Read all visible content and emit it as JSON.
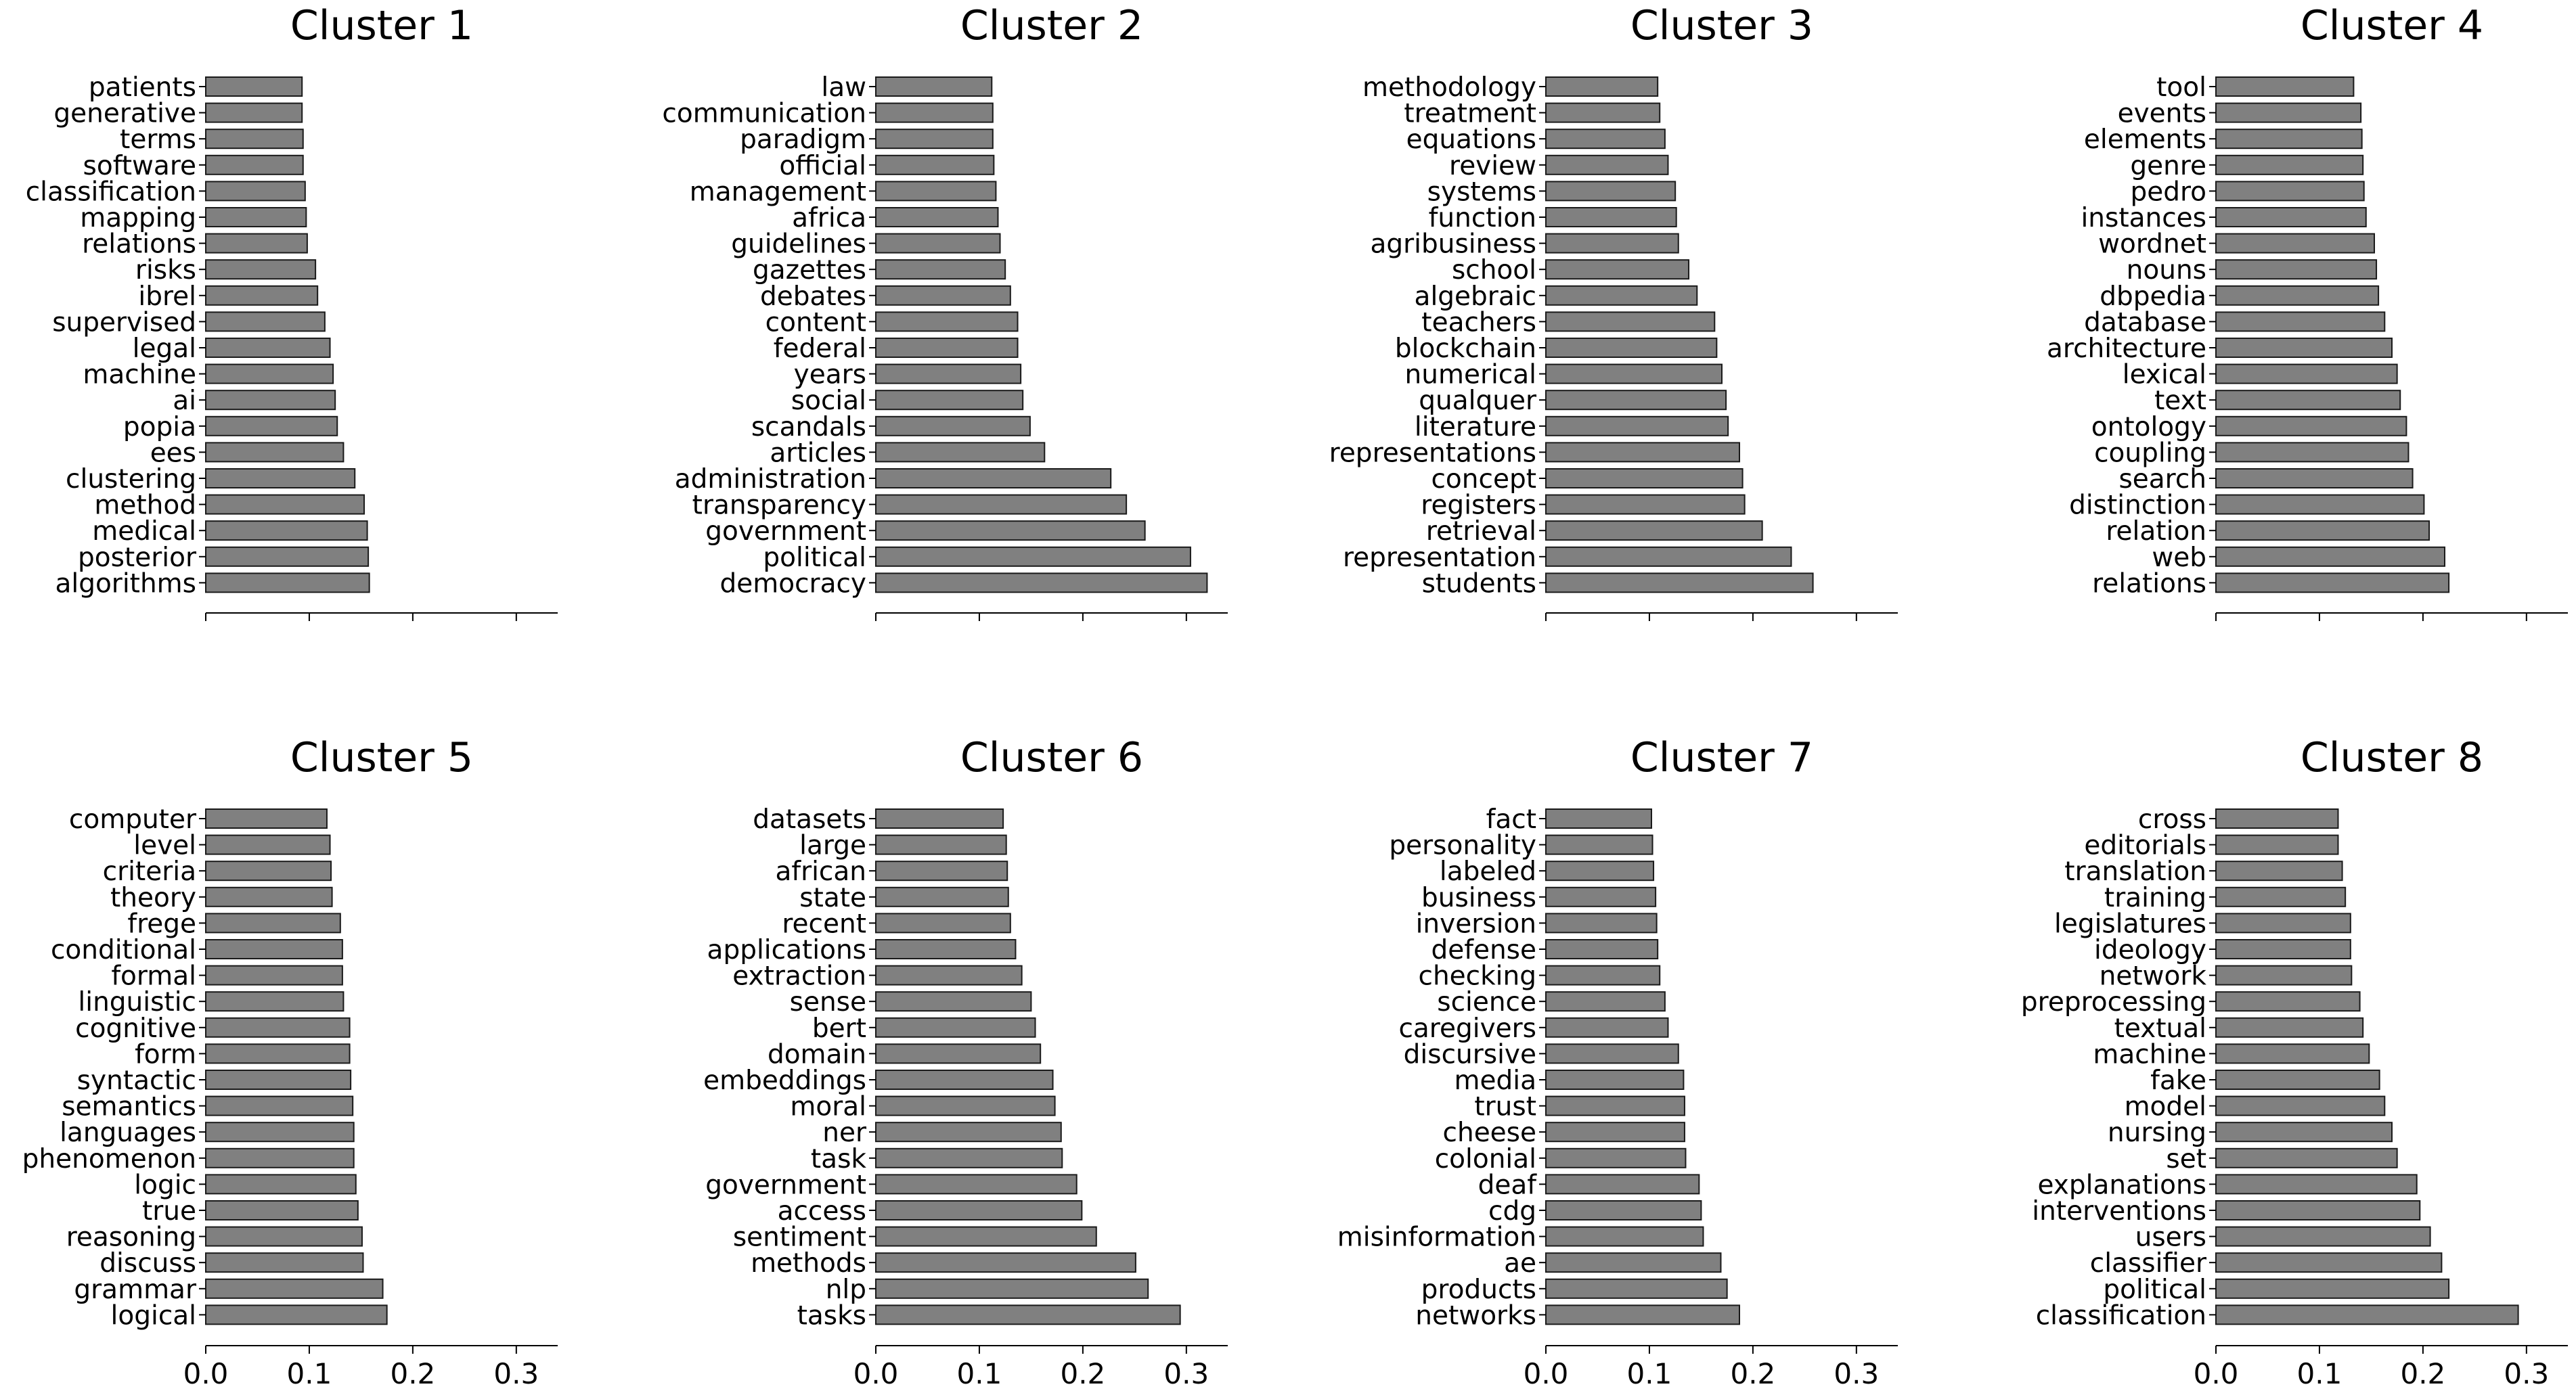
{
  "bar_color": "#808080",
  "bar_edge_color": "#1a1a1a",
  "axis_color": "#000000",
  "chart_data": [
    {
      "type": "bar",
      "orientation": "horizontal",
      "title": "Cluster 1",
      "categories": [
        "patients",
        "generative",
        "terms",
        "software",
        "classification",
        "mapping",
        "relations",
        "risks",
        "ibrel",
        "supervised",
        "legal",
        "machine",
        "ai",
        "popia",
        "ees",
        "clustering",
        "method",
        "medical",
        "posterior",
        "algorithms"
      ],
      "values": [
        0.093,
        0.093,
        0.094,
        0.094,
        0.096,
        0.097,
        0.098,
        0.106,
        0.108,
        0.115,
        0.12,
        0.123,
        0.125,
        0.127,
        0.133,
        0.144,
        0.153,
        0.156,
        0.157,
        0.158
      ],
      "xlim": [
        0,
        0.34
      ],
      "xticks": [
        "0.0",
        "0.1",
        "0.2",
        "0.3"
      ],
      "xtick_values": [
        0,
        0.1,
        0.2,
        0.3
      ],
      "show_tick_labels": false
    },
    {
      "type": "bar",
      "orientation": "horizontal",
      "title": "Cluster 2",
      "categories": [
        "law",
        "communication",
        "paradigm",
        "official",
        "management",
        "africa",
        "guidelines",
        "gazettes",
        "debates",
        "content",
        "federal",
        "years",
        "social",
        "scandals",
        "articles",
        "administration",
        "transparency",
        "government",
        "political",
        "democracy"
      ],
      "values": [
        0.112,
        0.113,
        0.113,
        0.114,
        0.116,
        0.118,
        0.12,
        0.125,
        0.13,
        0.137,
        0.137,
        0.14,
        0.142,
        0.149,
        0.163,
        0.227,
        0.242,
        0.26,
        0.304,
        0.32
      ],
      "xlim": [
        0,
        0.34
      ],
      "xticks": [
        "0.0",
        "0.1",
        "0.2",
        "0.3"
      ],
      "xtick_values": [
        0,
        0.1,
        0.2,
        0.3
      ],
      "show_tick_labels": false
    },
    {
      "type": "bar",
      "orientation": "horizontal",
      "title": "Cluster 3",
      "categories": [
        "methodology",
        "treatment",
        "equations",
        "review",
        "systems",
        "function",
        "agribusiness",
        "school",
        "algebraic",
        "teachers",
        "blockchain",
        "numerical",
        "qualquer",
        "literature",
        "representations",
        "concept",
        "registers",
        "retrieval",
        "representation",
        "students"
      ],
      "values": [
        0.108,
        0.11,
        0.115,
        0.118,
        0.125,
        0.126,
        0.128,
        0.138,
        0.146,
        0.163,
        0.165,
        0.17,
        0.174,
        0.176,
        0.187,
        0.19,
        0.192,
        0.209,
        0.237,
        0.258
      ],
      "xlim": [
        0,
        0.34
      ],
      "xticks": [
        "0.0",
        "0.1",
        "0.2",
        "0.3"
      ],
      "xtick_values": [
        0,
        0.1,
        0.2,
        0.3
      ],
      "show_tick_labels": false
    },
    {
      "type": "bar",
      "orientation": "horizontal",
      "title": "Cluster 4",
      "categories": [
        "tool",
        "events",
        "elements",
        "genre",
        "pedro",
        "instances",
        "wordnet",
        "nouns",
        "dbpedia",
        "database",
        "architecture",
        "lexical",
        "text",
        "ontology",
        "coupling",
        "search",
        "distinction",
        "relation",
        "web",
        "relations"
      ],
      "values": [
        0.133,
        0.14,
        0.141,
        0.142,
        0.143,
        0.145,
        0.153,
        0.155,
        0.157,
        0.163,
        0.17,
        0.175,
        0.178,
        0.184,
        0.186,
        0.19,
        0.201,
        0.206,
        0.221,
        0.225
      ],
      "xlim": [
        0,
        0.34
      ],
      "xticks": [
        "0.0",
        "0.1",
        "0.2",
        "0.3"
      ],
      "xtick_values": [
        0,
        0.1,
        0.2,
        0.3
      ],
      "show_tick_labels": false
    },
    {
      "type": "bar",
      "orientation": "horizontal",
      "title": "Cluster 5",
      "categories": [
        "computer",
        "level",
        "criteria",
        "theory",
        "frege",
        "conditional",
        "formal",
        "linguistic",
        "cognitive",
        "form",
        "syntactic",
        "semantics",
        "languages",
        "phenomenon",
        "logic",
        "true",
        "reasoning",
        "discuss",
        "grammar",
        "logical"
      ],
      "values": [
        0.117,
        0.12,
        0.121,
        0.122,
        0.13,
        0.132,
        0.132,
        0.133,
        0.139,
        0.139,
        0.14,
        0.142,
        0.143,
        0.143,
        0.145,
        0.147,
        0.151,
        0.152,
        0.171,
        0.175
      ],
      "xlim": [
        0,
        0.34
      ],
      "xticks": [
        "0.0",
        "0.1",
        "0.2",
        "0.3"
      ],
      "xtick_values": [
        0,
        0.1,
        0.2,
        0.3
      ],
      "show_tick_labels": true
    },
    {
      "type": "bar",
      "orientation": "horizontal",
      "title": "Cluster 6",
      "categories": [
        "datasets",
        "large",
        "african",
        "state",
        "recent",
        "applications",
        "extraction",
        "sense",
        "bert",
        "domain",
        "embeddings",
        "moral",
        "ner",
        "task",
        "government",
        "access",
        "sentiment",
        "methods",
        "nlp",
        "tasks"
      ],
      "values": [
        0.123,
        0.126,
        0.127,
        0.128,
        0.13,
        0.135,
        0.141,
        0.15,
        0.154,
        0.159,
        0.171,
        0.173,
        0.179,
        0.18,
        0.194,
        0.199,
        0.213,
        0.251,
        0.263,
        0.294
      ],
      "xlim": [
        0,
        0.34
      ],
      "xticks": [
        "0.0",
        "0.1",
        "0.2",
        "0.3"
      ],
      "xtick_values": [
        0,
        0.1,
        0.2,
        0.3
      ],
      "show_tick_labels": true
    },
    {
      "type": "bar",
      "orientation": "horizontal",
      "title": "Cluster 7",
      "categories": [
        "fact",
        "personality",
        "labeled",
        "business",
        "inversion",
        "defense",
        "checking",
        "science",
        "caregivers",
        "discursive",
        "media",
        "trust",
        "cheese",
        "colonial",
        "deaf",
        "cdg",
        "misinformation",
        "ae",
        "products",
        "networks"
      ],
      "values": [
        0.102,
        0.103,
        0.104,
        0.106,
        0.107,
        0.108,
        0.11,
        0.115,
        0.118,
        0.128,
        0.133,
        0.134,
        0.134,
        0.135,
        0.148,
        0.15,
        0.152,
        0.169,
        0.175,
        0.187
      ],
      "xlim": [
        0,
        0.34
      ],
      "xticks": [
        "0.0",
        "0.1",
        "0.2",
        "0.3"
      ],
      "xtick_values": [
        0,
        0.1,
        0.2,
        0.3
      ],
      "show_tick_labels": true
    },
    {
      "type": "bar",
      "orientation": "horizontal",
      "title": "Cluster 8",
      "categories": [
        "cross",
        "editorials",
        "translation",
        "training",
        "legislatures",
        "ideology",
        "network",
        "preprocessing",
        "textual",
        "machine",
        "fake",
        "model",
        "nursing",
        "set",
        "explanations",
        "interventions",
        "users",
        "classifier",
        "political",
        "classification"
      ],
      "values": [
        0.118,
        0.118,
        0.122,
        0.125,
        0.13,
        0.13,
        0.131,
        0.139,
        0.142,
        0.148,
        0.158,
        0.163,
        0.17,
        0.175,
        0.194,
        0.197,
        0.207,
        0.218,
        0.225,
        0.292
      ],
      "xlim": [
        0,
        0.34
      ],
      "xticks": [
        "0.0",
        "0.1",
        "0.2",
        "0.3"
      ],
      "xtick_values": [
        0,
        0.1,
        0.2,
        0.3
      ],
      "show_tick_labels": true
    }
  ]
}
